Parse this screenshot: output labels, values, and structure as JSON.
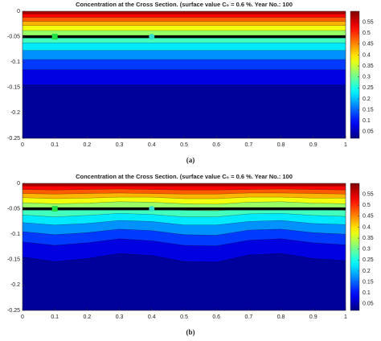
{
  "chart_data": [
    {
      "type": "contour",
      "title": "Concentration at the Cross Section. (surface value C₀ = 0.6 %. Year No.: 100",
      "caption": "(a)",
      "xlim": [
        0,
        1
      ],
      "xticks": [
        0,
        0.1,
        0.2,
        0.3,
        0.4,
        0.5,
        0.6,
        0.7,
        0.8,
        0.9,
        1
      ],
      "ylim": [
        -0.25,
        0
      ],
      "yticks": [
        0,
        -0.05,
        -0.1,
        -0.15,
        -0.2,
        -0.25
      ],
      "clim": [
        0.02,
        0.6
      ],
      "cticks": [
        0.05,
        0.1,
        0.15,
        0.2,
        0.25,
        0.3,
        0.35,
        0.4,
        0.45,
        0.5,
        0.55
      ],
      "colormap": "jet",
      "x": [
        0,
        1
      ],
      "contours": [
        {
          "level": 0.05,
          "depths": [
            -0.145,
            -0.145
          ]
        },
        {
          "level": 0.1,
          "depths": [
            -0.115,
            -0.115
          ]
        },
        {
          "level": 0.15,
          "depths": [
            -0.095,
            -0.095
          ]
        },
        {
          "level": 0.2,
          "depths": [
            -0.077,
            -0.077
          ]
        },
        {
          "level": 0.25,
          "depths": [
            -0.062,
            -0.062
          ]
        },
        {
          "level": 0.3,
          "depths": [
            -0.05,
            -0.05
          ]
        },
        {
          "level": 0.35,
          "depths": [
            -0.038,
            -0.038
          ]
        },
        {
          "level": 0.4,
          "depths": [
            -0.028,
            -0.028
          ]
        },
        {
          "level": 0.45,
          "depths": [
            -0.02,
            -0.02
          ]
        },
        {
          "level": 0.5,
          "depths": [
            -0.012,
            -0.012
          ]
        },
        {
          "level": 0.55,
          "depths": [
            -0.005,
            -0.005
          ]
        }
      ],
      "horizontal_line": {
        "y": -0.05,
        "color": "#000000"
      },
      "points": [
        {
          "x": 0.1,
          "y": -0.05,
          "marker": "square",
          "color": "#22dd44"
        },
        {
          "x": 0.4,
          "y": -0.05,
          "marker": "circle",
          "color": "#33ddcc"
        }
      ]
    },
    {
      "type": "contour",
      "title": "Concentration at the Cross Section. (surface value C₀ = 0.6 %. Year No.: 100",
      "caption": "(b)",
      "xlim": [
        0,
        1
      ],
      "xticks": [
        0,
        0.1,
        0.2,
        0.3,
        0.4,
        0.5,
        0.6,
        0.7,
        0.8,
        0.9,
        1
      ],
      "ylim": [
        -0.25,
        0
      ],
      "yticks": [
        0,
        -0.05,
        -0.1,
        -0.15,
        -0.2,
        -0.25
      ],
      "clim": [
        0.02,
        0.6
      ],
      "cticks": [
        0.05,
        0.1,
        0.15,
        0.2,
        0.25,
        0.3,
        0.35,
        0.4,
        0.45,
        0.5,
        0.55
      ],
      "colormap": "jet",
      "x": [
        0,
        0.1,
        0.2,
        0.3,
        0.4,
        0.5,
        0.6,
        0.7,
        0.8,
        0.9,
        1
      ],
      "contours": [
        {
          "level": 0.05,
          "depths": [
            -0.145,
            -0.154,
            -0.148,
            -0.138,
            -0.142,
            -0.154,
            -0.155,
            -0.141,
            -0.138,
            -0.148,
            -0.152
          ]
        },
        {
          "level": 0.1,
          "depths": [
            -0.115,
            -0.122,
            -0.117,
            -0.109,
            -0.113,
            -0.122,
            -0.123,
            -0.112,
            -0.109,
            -0.117,
            -0.121
          ]
        },
        {
          "level": 0.15,
          "depths": [
            -0.095,
            -0.101,
            -0.097,
            -0.09,
            -0.093,
            -0.101,
            -0.102,
            -0.092,
            -0.09,
            -0.097,
            -0.1
          ]
        },
        {
          "level": 0.2,
          "depths": [
            -0.077,
            -0.082,
            -0.079,
            -0.073,
            -0.075,
            -0.082,
            -0.082,
            -0.075,
            -0.073,
            -0.079,
            -0.081
          ]
        },
        {
          "level": 0.25,
          "depths": [
            -0.062,
            -0.066,
            -0.063,
            -0.059,
            -0.061,
            -0.066,
            -0.066,
            -0.06,
            -0.059,
            -0.063,
            -0.065
          ]
        },
        {
          "level": 0.3,
          "depths": [
            -0.05,
            -0.053,
            -0.051,
            -0.048,
            -0.049,
            -0.053,
            -0.054,
            -0.049,
            -0.048,
            -0.051,
            -0.053
          ]
        },
        {
          "level": 0.35,
          "depths": [
            -0.038,
            -0.04,
            -0.039,
            -0.036,
            -0.037,
            -0.04,
            -0.041,
            -0.037,
            -0.036,
            -0.039,
            -0.04
          ]
        },
        {
          "level": 0.4,
          "depths": [
            -0.028,
            -0.03,
            -0.029,
            -0.027,
            -0.027,
            -0.03,
            -0.03,
            -0.027,
            -0.027,
            -0.029,
            -0.029
          ]
        },
        {
          "level": 0.45,
          "depths": [
            -0.02,
            -0.021,
            -0.02,
            -0.019,
            -0.02,
            -0.021,
            -0.021,
            -0.019,
            -0.019,
            -0.02,
            -0.021
          ]
        },
        {
          "level": 0.5,
          "depths": [
            -0.012,
            -0.013,
            -0.012,
            -0.011,
            -0.012,
            -0.013,
            -0.013,
            -0.012,
            -0.011,
            -0.012,
            -0.013
          ]
        },
        {
          "level": 0.55,
          "depths": [
            -0.005,
            -0.005,
            -0.005,
            -0.005,
            -0.005,
            -0.005,
            -0.005,
            -0.005,
            -0.005,
            -0.005,
            -0.005
          ]
        }
      ],
      "horizontal_line": {
        "y": -0.05,
        "color": "#000000"
      },
      "points": [
        {
          "x": 0.1,
          "y": -0.05,
          "marker": "square",
          "color": "#22dd44"
        },
        {
          "x": 0.4,
          "y": -0.05,
          "marker": "circle",
          "color": "#33ddcc"
        }
      ]
    }
  ]
}
